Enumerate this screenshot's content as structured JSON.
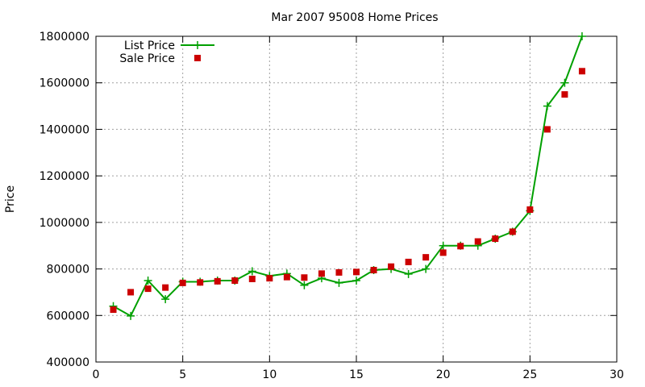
{
  "chart_data": {
    "type": "line",
    "title": "Mar 2007 95008 Home Prices",
    "xlabel": "",
    "ylabel": "Price",
    "xlim": [
      0,
      30
    ],
    "ylim": [
      400000,
      1800000
    ],
    "x_ticks": [
      0,
      5,
      10,
      15,
      20,
      25,
      30
    ],
    "y_ticks": [
      400000,
      600000,
      800000,
      1000000,
      1200000,
      1400000,
      1600000,
      1800000
    ],
    "x_tick_labels": [
      "0",
      "5",
      "10",
      "15",
      "20",
      "25",
      "30"
    ],
    "y_tick_labels": [
      "400000",
      "600000",
      "800000",
      "1000000",
      "1200000",
      "1400000",
      "1600000",
      "1800000"
    ],
    "grid": true,
    "legend_position": "top-left",
    "series": [
      {
        "name": "List Price",
        "style": "linespoints",
        "marker": "plus",
        "color": "#00a000",
        "x": [
          1,
          2,
          3,
          4,
          5,
          6,
          7,
          8,
          9,
          10,
          11,
          12,
          13,
          14,
          15,
          16,
          17,
          18,
          19,
          20,
          21,
          22,
          23,
          24,
          25,
          26,
          27,
          28
        ],
        "y": [
          640000,
          598000,
          750000,
          670000,
          745000,
          745000,
          750000,
          750000,
          790000,
          770000,
          780000,
          730000,
          760000,
          740000,
          750000,
          795000,
          800000,
          778000,
          800000,
          900000,
          900000,
          900000,
          930000,
          960000,
          1050000,
          1500000,
          1600000,
          1800000
        ]
      },
      {
        "name": "Sale Price",
        "style": "points",
        "marker": "square",
        "color": "#cc0000",
        "x": [
          1,
          2,
          3,
          4,
          5,
          6,
          7,
          8,
          9,
          10,
          11,
          12,
          13,
          14,
          15,
          16,
          17,
          18,
          19,
          20,
          21,
          22,
          23,
          24,
          25,
          26,
          27,
          28
        ],
        "y": [
          625000,
          700000,
          715000,
          720000,
          740000,
          742000,
          747000,
          750000,
          757000,
          760000,
          765000,
          763000,
          780000,
          785000,
          787000,
          795000,
          810000,
          830000,
          850000,
          870000,
          898000,
          918000,
          930000,
          960000,
          1055000,
          1400000,
          1550000,
          1650000
        ]
      }
    ]
  }
}
